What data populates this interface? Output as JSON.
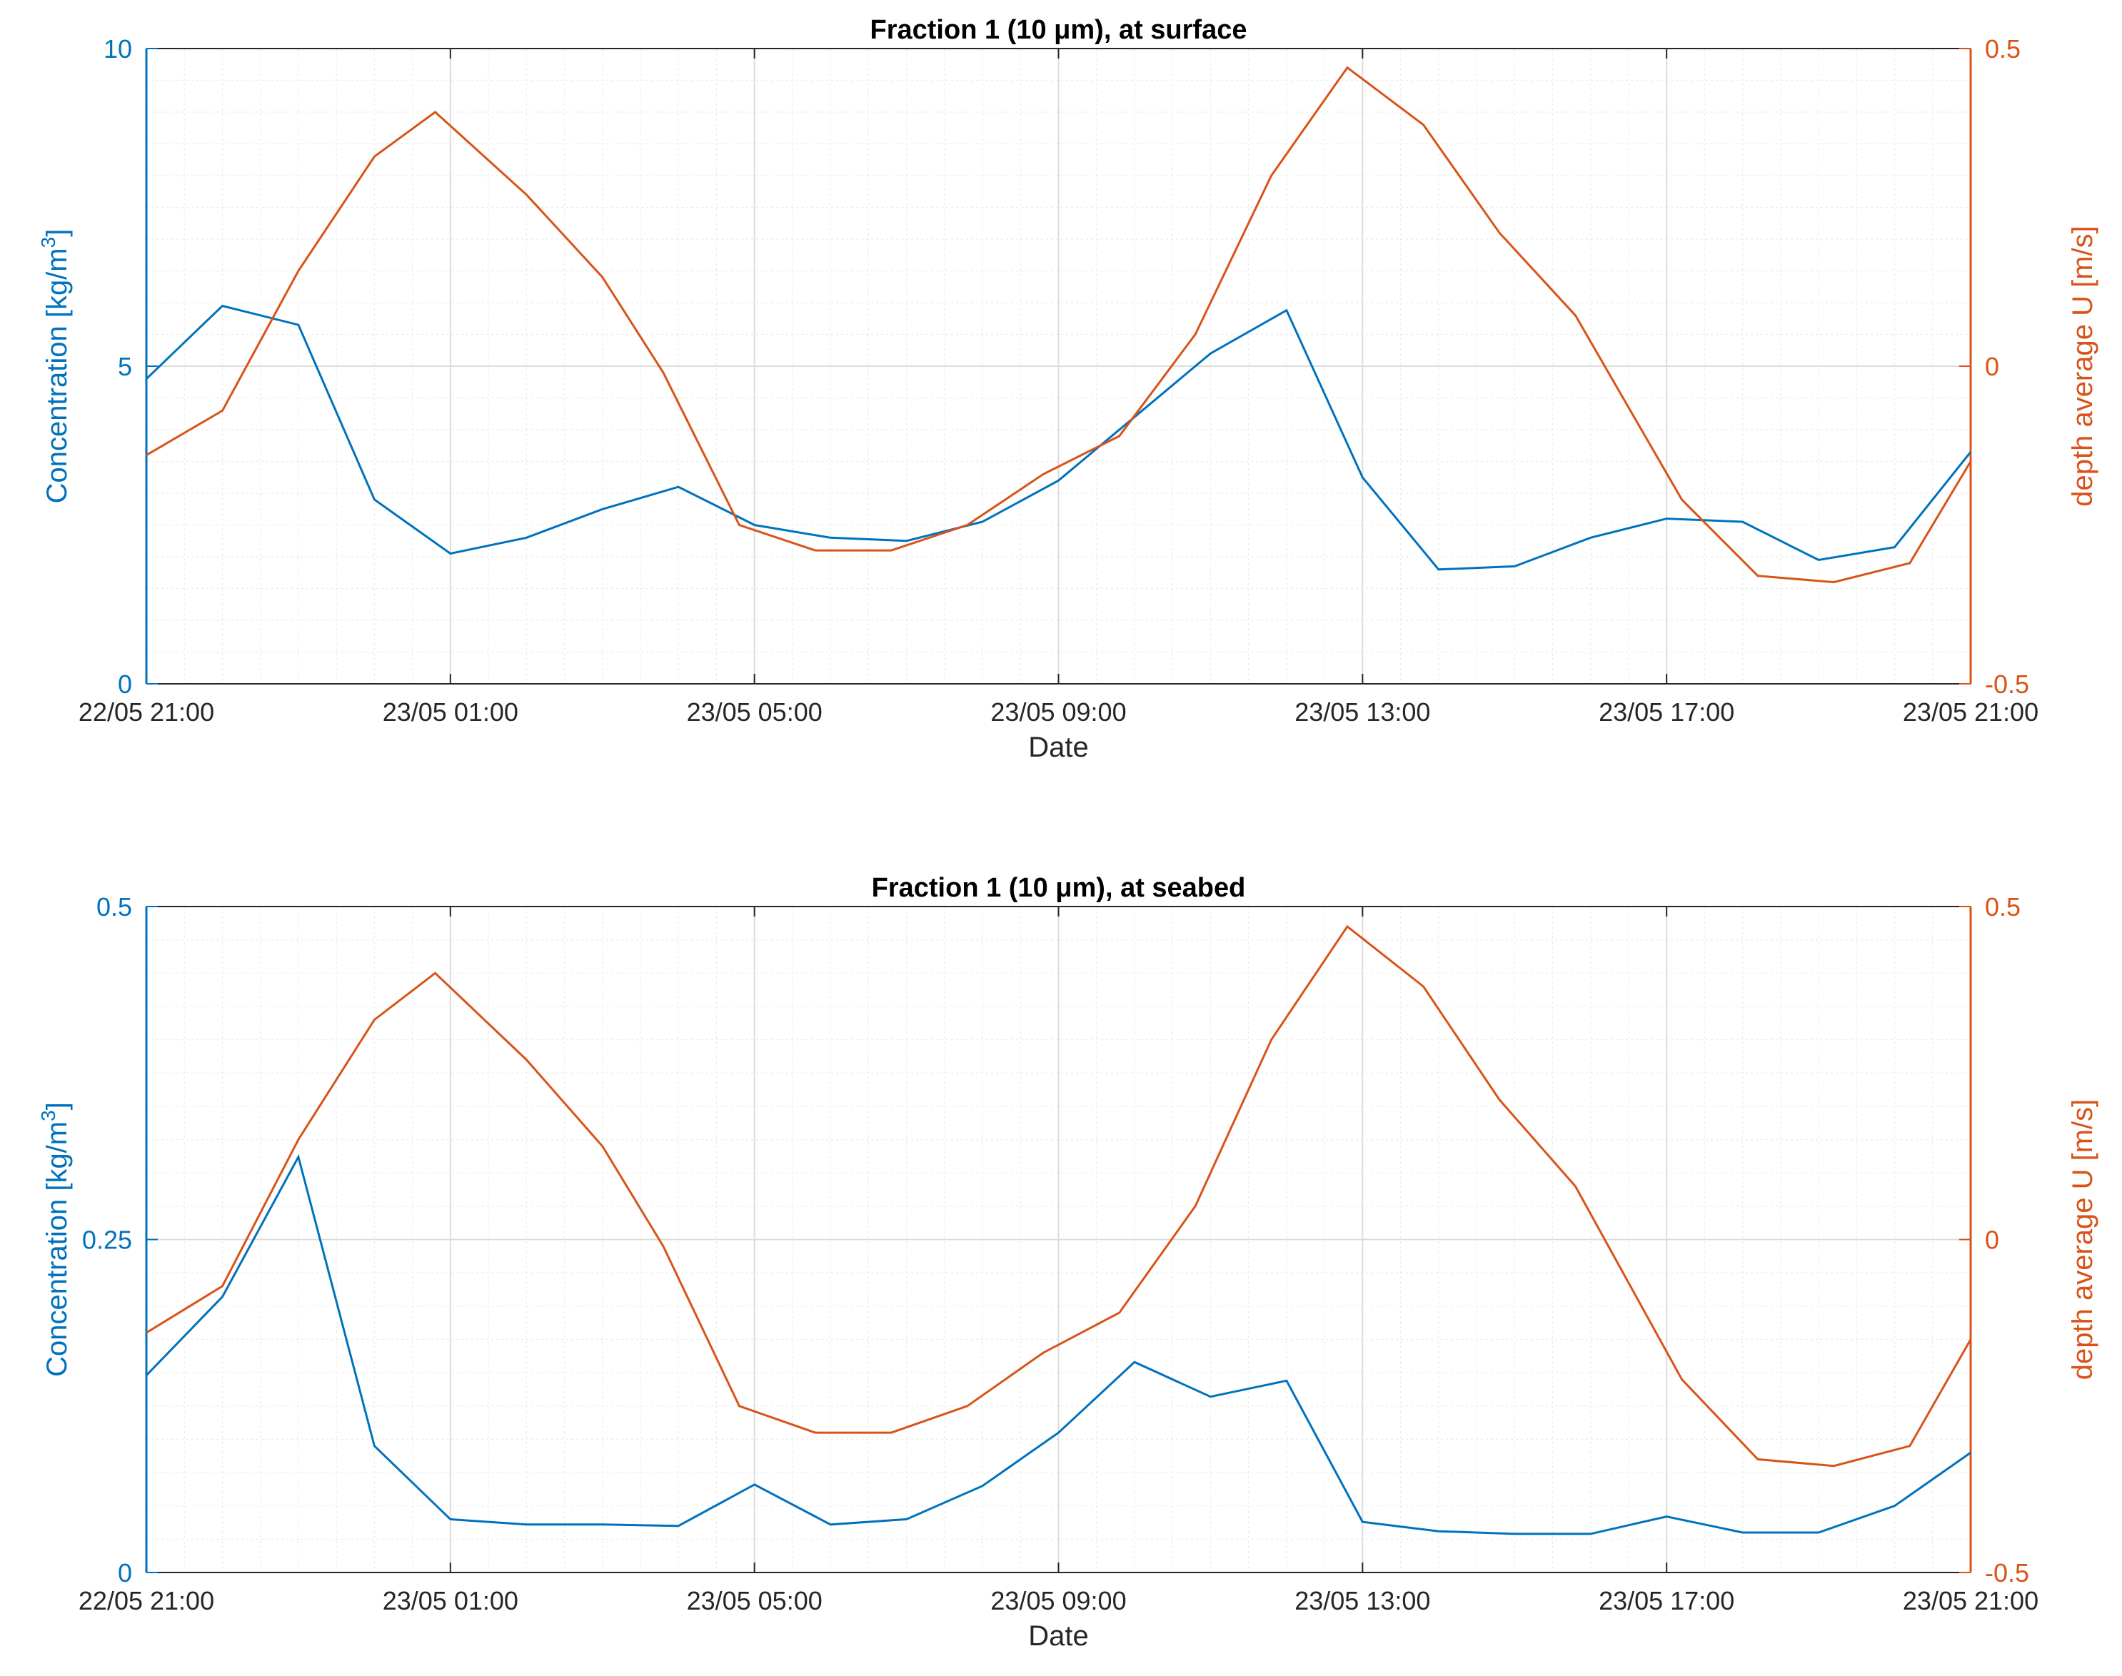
{
  "colors": {
    "left_axis": "#0072BD",
    "right_axis": "#D95319",
    "grid": "#DCDCDC",
    "minor_grid": "#EBEBEB",
    "axis_text": "#262626"
  },
  "chart_data": [
    {
      "type": "line",
      "title": "Fraction 1 (10 μm), at surface",
      "xlabel": "Date",
      "ylabel_left": "Concentration [kg/m",
      "ylabel_left_sup": "3",
      "ylabel_left_close": "]",
      "ylabel_right": "depth average U [m/s]",
      "x_tick_labels": [
        "22/05 21:00",
        "23/05 01:00",
        "23/05 05:00",
        "23/05 09:00",
        "23/05 13:00",
        "23/05 17:00",
        "23/05 21:00"
      ],
      "xlim_hours": [
        0,
        24
      ],
      "ylim_left": [
        0,
        10
      ],
      "yticks_left": [
        "0",
        "5",
        "10"
      ],
      "ylim_right": [
        -0.5,
        0.5
      ],
      "yticks_right": [
        "-0.5",
        "0",
        "0.5"
      ],
      "grid": true,
      "series": [
        {
          "axis": "left",
          "color": "#0072BD",
          "x": [
            0,
            1,
            2,
            3,
            4,
            5,
            6,
            7,
            8,
            9,
            10,
            11,
            12,
            13,
            14,
            15,
            16,
            17,
            18,
            19,
            20,
            21,
            22,
            23,
            24
          ],
          "y": [
            4.8,
            5.95,
            5.65,
            2.9,
            2.05,
            2.3,
            2.75,
            3.1,
            2.5,
            2.3,
            2.25,
            2.55,
            3.2,
            4.2,
            5.2,
            5.88,
            3.25,
            1.8,
            1.85,
            2.3,
            2.6,
            2.55,
            1.95,
            2.15,
            3.65
          ]
        },
        {
          "axis": "right",
          "color": "#D95319",
          "x": [
            0,
            1,
            2,
            3,
            3.8,
            5,
            6,
            6.8,
            7.8,
            8.8,
            9.8,
            10.8,
            11.8,
            12.8,
            13.8,
            14.8,
            15.8,
            16.8,
            17.8,
            18.8,
            20.2,
            21.2,
            22.2,
            23.2,
            24
          ],
          "y": [
            -0.14,
            -0.07,
            0.15,
            0.33,
            0.4,
            0.27,
            0.14,
            -0.01,
            -0.25,
            -0.29,
            -0.29,
            -0.25,
            -0.17,
            -0.11,
            0.05,
            0.3,
            0.47,
            0.38,
            0.21,
            0.08,
            -0.21,
            -0.33,
            -0.34,
            -0.31,
            -0.15
          ]
        }
      ]
    },
    {
      "type": "line",
      "title": "Fraction 1 (10 μm), at seabed",
      "xlabel": "Date",
      "ylabel_left": "Concentration [kg/m",
      "ylabel_left_sup": "3",
      "ylabel_left_close": "]",
      "ylabel_right": "depth average U [m/s]",
      "x_tick_labels": [
        "22/05 21:00",
        "23/05 01:00",
        "23/05 05:00",
        "23/05 09:00",
        "23/05 13:00",
        "23/05 17:00",
        "23/05 21:00"
      ],
      "xlim_hours": [
        0,
        24
      ],
      "ylim_left": [
        0,
        0.5
      ],
      "yticks_left": [
        "0",
        "0.25",
        "0.5"
      ],
      "ylim_right": [
        -0.5,
        0.5
      ],
      "yticks_right": [
        "-0.5",
        "0",
        "0.5"
      ],
      "grid": true,
      "series": [
        {
          "axis": "left",
          "color": "#0072BD",
          "x": [
            0,
            1,
            2,
            3,
            4,
            5,
            6,
            7,
            8,
            9,
            10,
            11,
            12,
            13,
            14,
            15,
            16,
            17,
            18,
            19,
            20,
            21,
            22,
            23,
            24
          ],
          "y": [
            0.148,
            0.207,
            0.312,
            0.095,
            0.04,
            0.036,
            0.036,
            0.035,
            0.066,
            0.036,
            0.04,
            0.065,
            0.105,
            0.158,
            0.132,
            0.144,
            0.038,
            0.031,
            0.029,
            0.029,
            0.042,
            0.03,
            0.03,
            0.05,
            0.09
          ]
        },
        {
          "axis": "right",
          "color": "#D95319",
          "x": [
            0,
            1,
            2,
            3,
            3.8,
            5,
            6,
            6.8,
            7.8,
            8.8,
            9.8,
            10.8,
            11.8,
            12.8,
            13.8,
            14.8,
            15.8,
            16.8,
            17.8,
            18.8,
            20.2,
            21.2,
            22.2,
            23.2,
            24
          ],
          "y": [
            -0.14,
            -0.07,
            0.15,
            0.33,
            0.4,
            0.27,
            0.14,
            -0.01,
            -0.25,
            -0.29,
            -0.29,
            -0.25,
            -0.17,
            -0.11,
            0.05,
            0.3,
            0.47,
            0.38,
            0.21,
            0.08,
            -0.21,
            -0.33,
            -0.34,
            -0.31,
            -0.15
          ]
        }
      ]
    }
  ]
}
